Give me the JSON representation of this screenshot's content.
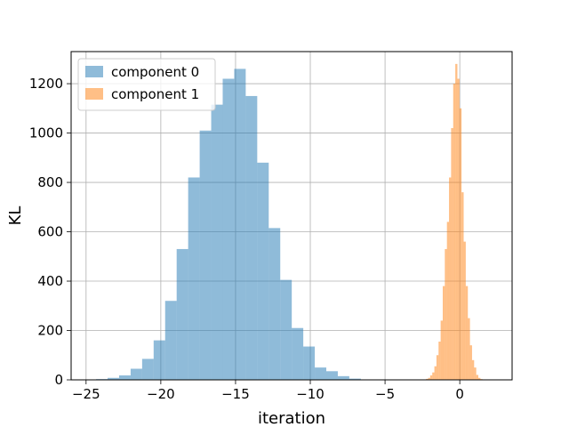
{
  "chart_data": {
    "type": "bar",
    "xlabel": "iteration",
    "ylabel": "KL",
    "xlim": [
      -26.0,
      3.5
    ],
    "ylim": [
      0,
      1330
    ],
    "xticks": [
      -25,
      -20,
      -15,
      -10,
      -5,
      0
    ],
    "yticks": [
      0,
      200,
      400,
      600,
      800,
      1000,
      1200
    ],
    "grid": true,
    "legend_position": "top-left",
    "series": [
      {
        "name": "component 0",
        "color": "#1f77b4",
        "bin_edges": [
          -25.1,
          -24.33,
          -23.56,
          -22.79,
          -22.02,
          -21.25,
          -20.48,
          -19.71,
          -18.94,
          -18.17,
          -17.4,
          -16.63,
          -15.86,
          -15.09,
          -14.32,
          -13.55,
          -12.78,
          -12.01,
          -11.24,
          -10.47,
          -9.7,
          -8.93,
          -8.16,
          -7.39,
          -6.62
        ],
        "counts": [
          1,
          3,
          8,
          18,
          45,
          85,
          160,
          320,
          530,
          820,
          1010,
          1115,
          1220,
          1260,
          1150,
          880,
          615,
          405,
          210,
          135,
          50,
          35,
          15,
          5
        ]
      },
      {
        "name": "component 1",
        "color": "#ff7f0e",
        "bin_edges": [
          -2.4,
          -2.26,
          -2.12,
          -1.98,
          -1.84,
          -1.7,
          -1.56,
          -1.42,
          -1.28,
          -1.14,
          -1.0,
          -0.86,
          -0.72,
          -0.58,
          -0.44,
          -0.3,
          -0.16,
          -0.02,
          0.12,
          0.26,
          0.4,
          0.54,
          0.68,
          0.82,
          0.96,
          1.1,
          1.24,
          1.38,
          1.52,
          1.66,
          1.8
        ],
        "counts": [
          1,
          4,
          8,
          18,
          30,
          55,
          100,
          155,
          240,
          380,
          530,
          640,
          820,
          1020,
          1200,
          1280,
          1220,
          1100,
          760,
          560,
          380,
          250,
          140,
          80,
          50,
          20,
          8,
          3,
          1,
          0
        ]
      }
    ]
  }
}
